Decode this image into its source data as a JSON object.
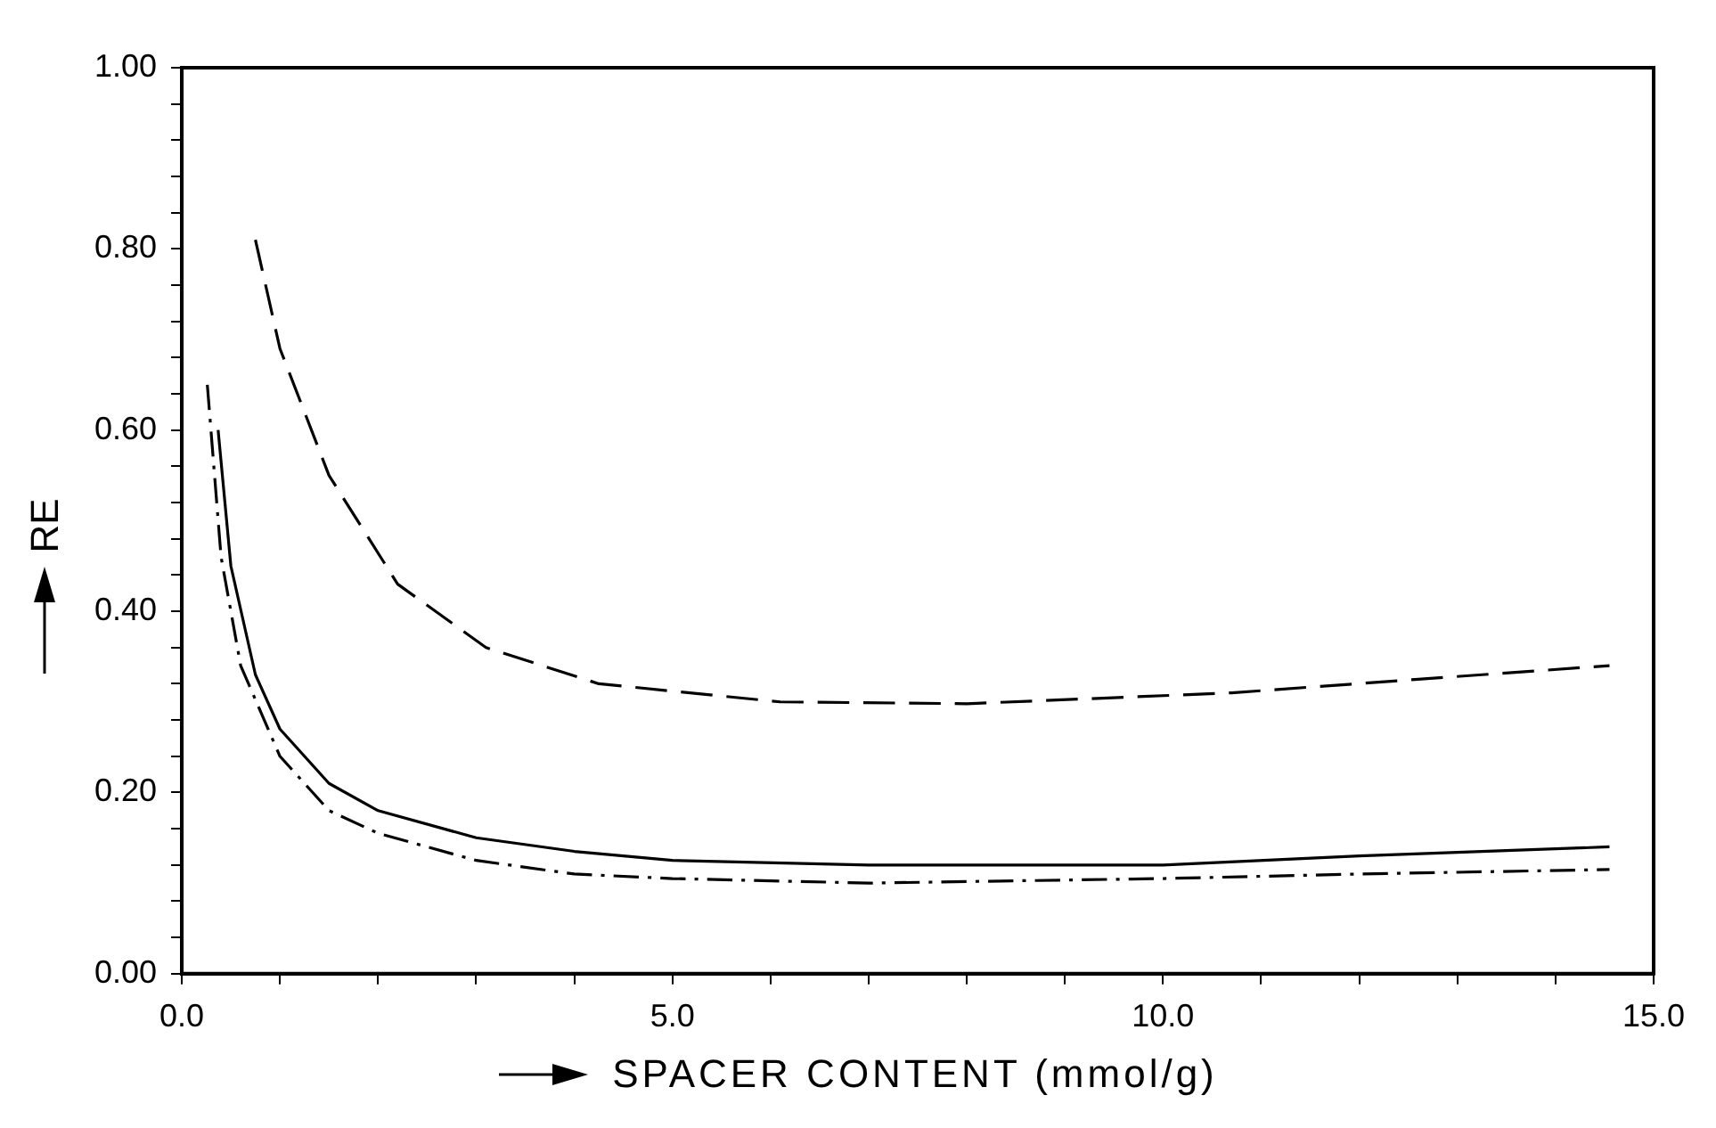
{
  "chart_data": {
    "type": "line",
    "xlabel": "SPACER CONTENT (mmol/g)",
    "ylabel": "RE",
    "xlim": [
      0,
      15
    ],
    "ylim": [
      0,
      1
    ],
    "xticks": [
      {
        "value": 0,
        "label": "0.0"
      },
      {
        "value": 1,
        "label": null
      },
      {
        "value": 2,
        "label": null
      },
      {
        "value": 3,
        "label": null
      },
      {
        "value": 4,
        "label": null
      },
      {
        "value": 5,
        "label": "5.0"
      },
      {
        "value": 6,
        "label": null
      },
      {
        "value": 7,
        "label": null
      },
      {
        "value": 8,
        "label": null
      },
      {
        "value": 9,
        "label": null
      },
      {
        "value": 10,
        "label": "10.0"
      },
      {
        "value": 11,
        "label": null
      },
      {
        "value": 12,
        "label": null
      },
      {
        "value": 13,
        "label": null
      },
      {
        "value": 14,
        "label": null
      },
      {
        "value": 15,
        "label": "15.0"
      }
    ],
    "yticks": [
      {
        "value": 0,
        "label": "0.00"
      },
      {
        "value": 0.04,
        "label": null
      },
      {
        "value": 0.08,
        "label": null
      },
      {
        "value": 0.12,
        "label": null
      },
      {
        "value": 0.16,
        "label": null
      },
      {
        "value": 0.2,
        "label": "0.20"
      },
      {
        "value": 0.24,
        "label": null
      },
      {
        "value": 0.28,
        "label": null
      },
      {
        "value": 0.32,
        "label": null
      },
      {
        "value": 0.36,
        "label": null
      },
      {
        "value": 0.4,
        "label": "0.40"
      },
      {
        "value": 0.44,
        "label": null
      },
      {
        "value": 0.48,
        "label": null
      },
      {
        "value": 0.52,
        "label": null
      },
      {
        "value": 0.56,
        "label": null
      },
      {
        "value": 0.6,
        "label": "0.60"
      },
      {
        "value": 0.64,
        "label": null
      },
      {
        "value": 0.68,
        "label": null
      },
      {
        "value": 0.72,
        "label": null
      },
      {
        "value": 0.76,
        "label": null
      },
      {
        "value": 0.8,
        "label": "0.80"
      },
      {
        "value": 0.84,
        "label": null
      },
      {
        "value": 0.88,
        "label": null
      },
      {
        "value": 0.92,
        "label": null
      },
      {
        "value": 0.96,
        "label": null
      },
      {
        "value": 1,
        "label": "1.00"
      }
    ],
    "grid": false,
    "legend": false,
    "marker": "none",
    "series": [
      {
        "color": "#000000",
        "line_style": "dashed",
        "x": [
          0.75,
          1.0,
          1.5,
          2.2,
          3.1,
          4.25,
          6.1,
          8.0,
          10.7,
          12.6,
          14.55
        ],
        "values": [
          0.81,
          0.69,
          0.55,
          0.43,
          0.36,
          0.32,
          0.3,
          0.298,
          0.31,
          0.325,
          0.34
        ]
      },
      {
        "color": "#000000",
        "line_style": "solid",
        "x": [
          0.37,
          0.5,
          0.75,
          1.0,
          1.5,
          2.0,
          3.0,
          4.0,
          5.0,
          7.0,
          10.0,
          12.0,
          14.55
        ],
        "values": [
          0.6,
          0.45,
          0.33,
          0.27,
          0.21,
          0.18,
          0.15,
          0.135,
          0.125,
          0.12,
          0.12,
          0.13,
          0.14
        ]
      },
      {
        "color": "#000000",
        "line_style": "dashdot",
        "x": [
          0.26,
          0.4,
          0.6,
          1.0,
          1.5,
          2.0,
          3.0,
          4.0,
          5.0,
          7.0,
          10.0,
          12.0,
          14.55
        ],
        "values": [
          0.65,
          0.46,
          0.34,
          0.24,
          0.18,
          0.155,
          0.125,
          0.11,
          0.105,
          0.1,
          0.105,
          0.11,
          0.115
        ]
      }
    ]
  }
}
